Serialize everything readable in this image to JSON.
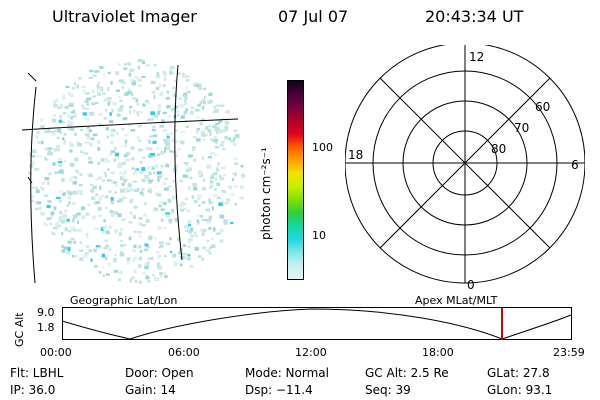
{
  "header": {
    "instrument": "Ultraviolet Imager",
    "date": "07 Jul 07",
    "time": "20:43:34 UT"
  },
  "colorbar": {
    "unit_label": "photon cm⁻²s⁻¹",
    "ticks": [
      "100",
      "10"
    ],
    "colors": [
      "#140014",
      "#4a003a",
      "#7a0040",
      "#b0002a",
      "#e0001e",
      "#ff5a00",
      "#ffa000",
      "#f4e000",
      "#c8f000",
      "#80e000",
      "#30d040",
      "#10d8a0",
      "#20d8e0",
      "#80e8e8",
      "#c8f0f0",
      "#e8f4f4"
    ]
  },
  "polar_plot": {
    "mlt_labels": {
      "top": "12",
      "bottom": "0",
      "left": "18",
      "right": "6"
    },
    "lat_labels": [
      "60",
      "70",
      "80"
    ]
  },
  "timeline": {
    "left_label": "Geographic Lat/Lon",
    "right_label": "Apex MLat/MLT",
    "axis_title": "GC Alt",
    "y_ticks": [
      "9.0",
      "1.8"
    ],
    "x_ticks": [
      "00:00",
      "06:00",
      "12:00",
      "18:00",
      "23:59"
    ],
    "current_marker_color": "#d00000"
  },
  "info": {
    "flt": "Flt: LBHL",
    "door": "Door: Open",
    "mode": "Mode: Normal",
    "gc_alt": "GC Alt: 2.5 Re",
    "glat": "GLat:  27.8",
    "ip": "IP: 36.0",
    "gain": "Gain: 14",
    "dsp": "Dsp:  −11.4",
    "seq": "Seq: 39",
    "glon": "GLon:  93.1"
  }
}
